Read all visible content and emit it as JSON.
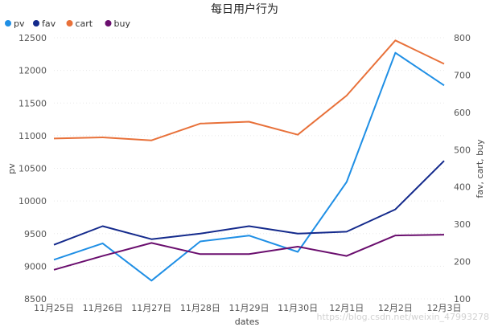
{
  "chart_data": {
    "type": "line",
    "title": "每日用户行为",
    "xlabel": "dates",
    "ylabel_left": "pv",
    "ylabel_right": "fav, cart, buy",
    "categories": [
      "11月25日",
      "11月26日",
      "11月27日",
      "11月28日",
      "11月29日",
      "11月30日",
      "12月1日",
      "12月2日",
      "12月3日"
    ],
    "y_left_range": [
      8500,
      12500
    ],
    "y_left_ticks": [
      8500,
      9000,
      9500,
      10000,
      10500,
      11000,
      11500,
      12000,
      12500
    ],
    "y_right_range": [
      100,
      800
    ],
    "y_right_ticks": [
      100,
      200,
      300,
      400,
      500,
      600,
      700,
      800
    ],
    "legend_position": "top-left",
    "grid": true,
    "series": [
      {
        "name": "pv",
        "axis": "left",
        "color": "#1f8fe5",
        "values": [
          9100,
          9350,
          8780,
          9380,
          9470,
          9220,
          10290,
          12270,
          11770
        ]
      },
      {
        "name": "fav",
        "axis": "right",
        "color": "#142a8c",
        "values": [
          245,
          295,
          260,
          275,
          295,
          275,
          280,
          340,
          470
        ]
      },
      {
        "name": "cart",
        "axis": "right",
        "color": "#e8713a",
        "values": [
          530,
          533,
          525,
          570,
          575,
          540,
          645,
          793,
          730
        ]
      },
      {
        "name": "buy",
        "axis": "right",
        "color": "#6a0e6e",
        "values": [
          178,
          215,
          250,
          220,
          220,
          240,
          215,
          270,
          272
        ]
      }
    ]
  },
  "watermark": "https://blog.csdn.net/weixin_47993278"
}
